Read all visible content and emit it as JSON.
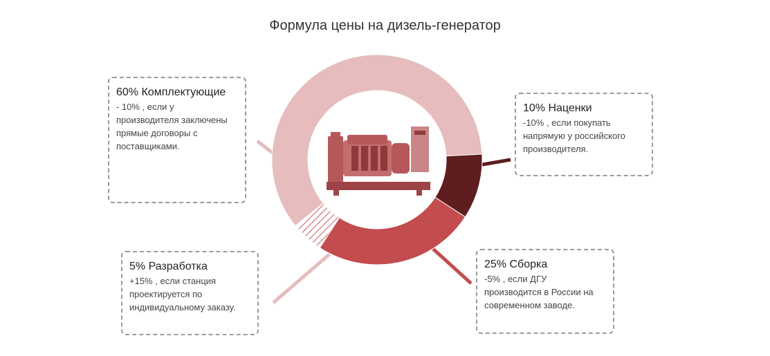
{
  "title": "Формула цены на дизель-генератор",
  "chart_data": {
    "type": "pie",
    "variant": "donut",
    "title": "Формула цены на дизель-генератор",
    "slices": [
      {
        "key": "components",
        "label": "Комплектующие",
        "value": 60,
        "color": "#e6bcbc",
        "pattern": "solid"
      },
      {
        "key": "markup",
        "label": "Наценки",
        "value": 10,
        "color": "#5e1d1f",
        "pattern": "solid"
      },
      {
        "key": "assembly",
        "label": "Сборка",
        "value": 25,
        "color": "#c24c4e",
        "pattern": "solid"
      },
      {
        "key": "development",
        "label": "Разработка",
        "value": 5,
        "color": "#d98f90",
        "pattern": "hatched"
      }
    ]
  },
  "callouts": {
    "components": {
      "head": "60% Комплектующие",
      "desc": "- 10% , если у производителя заключены прямые договоры с поставщиками."
    },
    "markup": {
      "head": "10% Наценки",
      "desc": "-10% , если покупать напрямую у российского производителя."
    },
    "assembly": {
      "head": "25% Сборка",
      "desc": "-5% , если ДГУ производится в России на современном заводе."
    },
    "development": {
      "head": "5% Разработка",
      "desc": "+15% , если станция проектируется по индивидуальному заказу."
    }
  },
  "image": {
    "icon": "diesel-generator-icon",
    "tint": "#b5585a"
  }
}
